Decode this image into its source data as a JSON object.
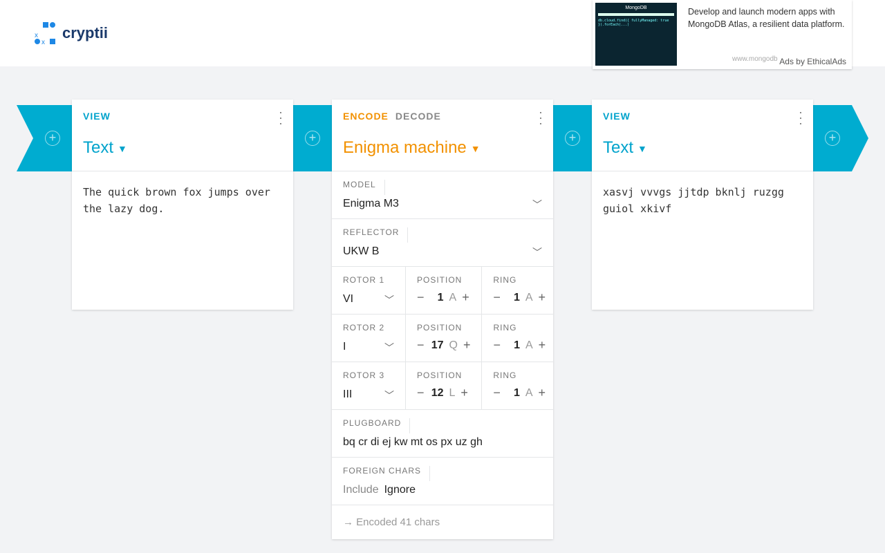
{
  "header": {
    "logo": "cryptii"
  },
  "ad": {
    "text": "Develop and launch modern apps with MongoDB Atlas, a resilient data platform.",
    "url": "www.mongodb.com",
    "by": "Ads by EthicalAds",
    "image_brand": "MongoDB"
  },
  "colors": {
    "accent_cyan": "#00acd0",
    "accent_orange": "#f29100"
  },
  "left": {
    "tab": "VIEW",
    "title": "Text",
    "content": "The quick brown fox jumps over the lazy dog."
  },
  "middle": {
    "tab_encode": "ENCODE",
    "tab_decode": "DECODE",
    "title": "Enigma machine",
    "model": {
      "label": "MODEL",
      "value": "Enigma M3"
    },
    "reflector": {
      "label": "REFLECTOR",
      "value": "UKW B"
    },
    "rotors": [
      {
        "label": "ROTOR 1",
        "value": "VI",
        "pos_label": "POSITION",
        "pos": "1",
        "pos_letter": "A",
        "ring_label": "RING",
        "ring": "1",
        "ring_letter": "A"
      },
      {
        "label": "ROTOR 2",
        "value": "I",
        "pos_label": "POSITION",
        "pos": "17",
        "pos_letter": "Q",
        "ring_label": "RING",
        "ring": "1",
        "ring_letter": "A"
      },
      {
        "label": "ROTOR 3",
        "value": "III",
        "pos_label": "POSITION",
        "pos": "12",
        "pos_letter": "L",
        "ring_label": "RING",
        "ring": "1",
        "ring_letter": "A"
      }
    ],
    "plugboard": {
      "label": "PLUGBOARD",
      "value": "bq cr di ej kw mt os px uz gh"
    },
    "foreign": {
      "label": "FOREIGN CHARS",
      "include": "Include",
      "ignore": "Ignore"
    },
    "status": "Encoded 41 chars"
  },
  "right": {
    "tab": "VIEW",
    "title": "Text",
    "content": "xasvj vvvgs jjtdp bknlj ruzgg guiol xkivf"
  }
}
